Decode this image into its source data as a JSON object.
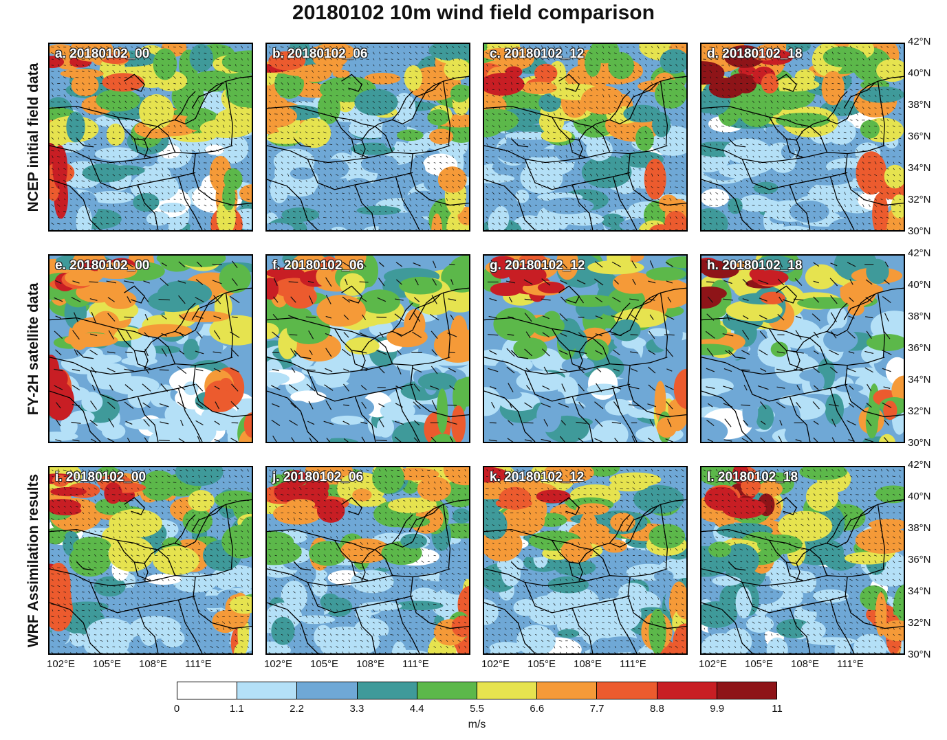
{
  "title": "20180102 10m wind field comparison",
  "row_labels": [
    "NCEP initial field data",
    "FY-2H satellite data",
    "WRF Assimilation results"
  ],
  "panels": [
    {
      "label": "a. 20180102_00"
    },
    {
      "label": "b. 20180102_06"
    },
    {
      "label": "c. 20180102_12"
    },
    {
      "label": "d. 20180102_18"
    },
    {
      "label": "e. 20180102_00"
    },
    {
      "label": "f. 20180102_06"
    },
    {
      "label": "g. 20180102_12"
    },
    {
      "label": "h. 20180102_18"
    },
    {
      "label": "i. 20180102_00"
    },
    {
      "label": "j. 20180102_06"
    },
    {
      "label": "k. 20180102_12"
    },
    {
      "label": "l. 20180102_18"
    }
  ],
  "lat_labels": [
    "42°N",
    "40°N",
    "38°N",
    "36°N",
    "34°N",
    "32°N",
    "30°N"
  ],
  "lon_labels": [
    "102°E",
    "105°E",
    "108°E",
    "111°E"
  ],
  "colorbar": {
    "ticks": [
      "0",
      "1.1",
      "2.2",
      "3.3",
      "4.4",
      "5.5",
      "6.6",
      "7.7",
      "8.8",
      "9.9",
      "11"
    ],
    "colors": [
      "#ffffff",
      "#b4e0f7",
      "#6fa8d6",
      "#3f9a9a",
      "#5cb84a",
      "#e6e34f",
      "#f59a38",
      "#ec5b2e",
      "#c81e24",
      "#8e1418"
    ],
    "unit": "m/s"
  }
}
